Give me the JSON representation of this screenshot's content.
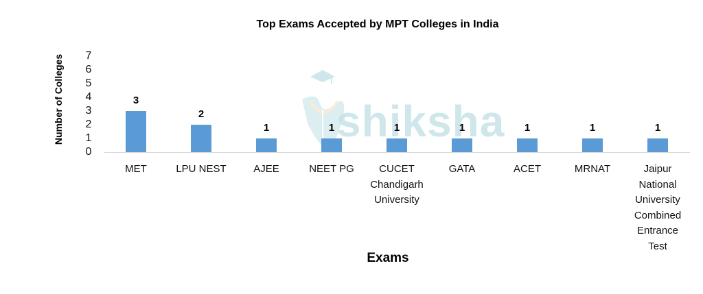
{
  "chart_data": {
    "type": "bar",
    "title": "Top Exams Accepted by MPT Colleges in India",
    "xlabel": "Exams",
    "ylabel": "Number of Colleges",
    "categories": [
      "MET",
      "LPU NEST",
      "AJEE",
      "NEET PG",
      "CUCET Chandigarh University",
      "GATA",
      "ACET",
      "MRNAT",
      "Jaipur National University Combined Entrance Test"
    ],
    "category_label_lines": [
      [
        "MET"
      ],
      [
        "LPU NEST"
      ],
      [
        "AJEE"
      ],
      [
        "NEET PG"
      ],
      [
        "CUCET",
        "Chandigarh",
        "University"
      ],
      [
        "GATA"
      ],
      [
        "ACET"
      ],
      [
        "MRNAT"
      ],
      [
        "Jaipur",
        "National",
        "University",
        "Combined",
        "Entrance",
        "Test"
      ]
    ],
    "values": [
      3,
      2,
      1,
      1,
      1,
      1,
      1,
      1,
      1
    ],
    "ylim": [
      0,
      7
    ],
    "yticks": [
      0,
      1,
      2,
      3,
      4,
      5,
      6,
      7
    ],
    "data_labels": true,
    "grid": false,
    "legend": "none",
    "bar_color": "#5B9BD5"
  },
  "watermark": {
    "text": "shiksha"
  }
}
